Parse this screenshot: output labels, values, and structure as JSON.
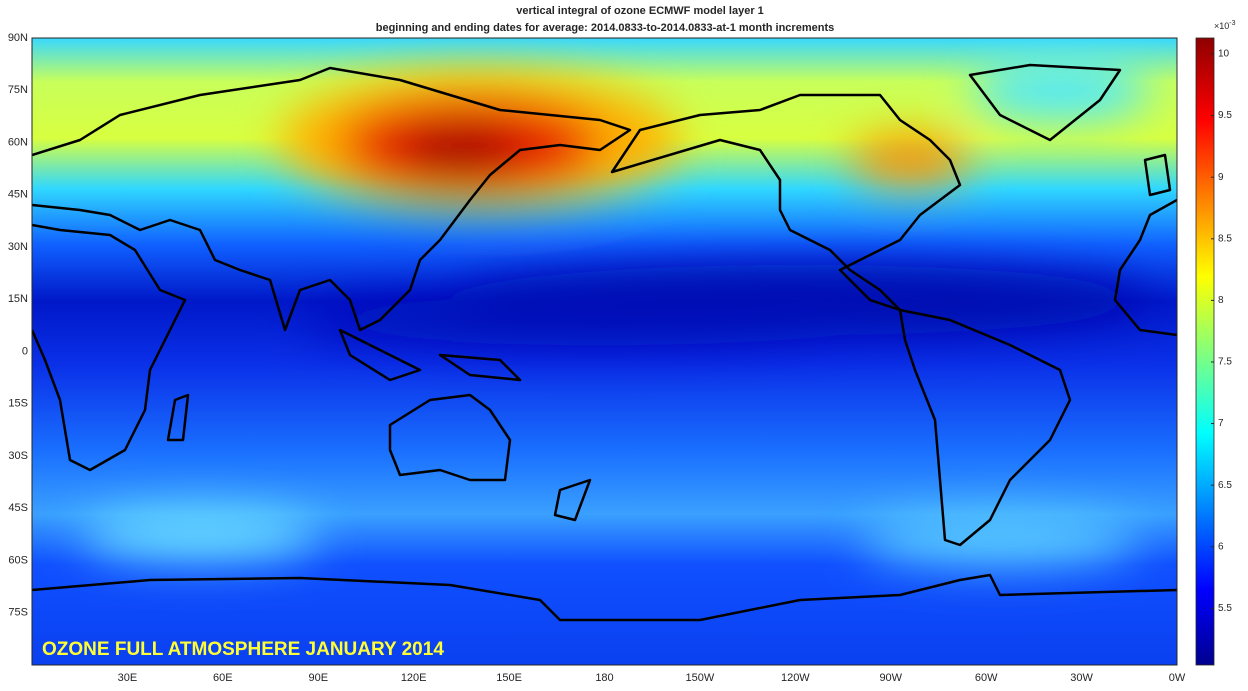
{
  "title": [
    "vertical integral of ozone ECMWF model layer 1",
    "beginning and ending dates for average:  2014.0833-to-2014.0833-at-1 month increments"
  ],
  "lat_labels": [
    "90N",
    "75N",
    "60N",
    "45N",
    "30N",
    "15N",
    "0",
    "15S",
    "30S",
    "45S",
    "60S",
    "75S"
  ],
  "lon_labels": [
    "30E",
    "60E",
    "90E",
    "120E",
    "150E",
    "180",
    "150W",
    "120W",
    "90W",
    "60W",
    "30W",
    "0W"
  ],
  "colorbar": {
    "exponent": "×10",
    "exponent_power": "-3",
    "lim": [
      5.04,
      10.13
    ],
    "ticks": [
      5.5,
      6,
      6.5,
      7,
      7.5,
      8,
      8.5,
      9,
      9.5,
      10
    ]
  },
  "caption": "OZONE FULL ATMOSPHERE JANUARY 2014"
}
